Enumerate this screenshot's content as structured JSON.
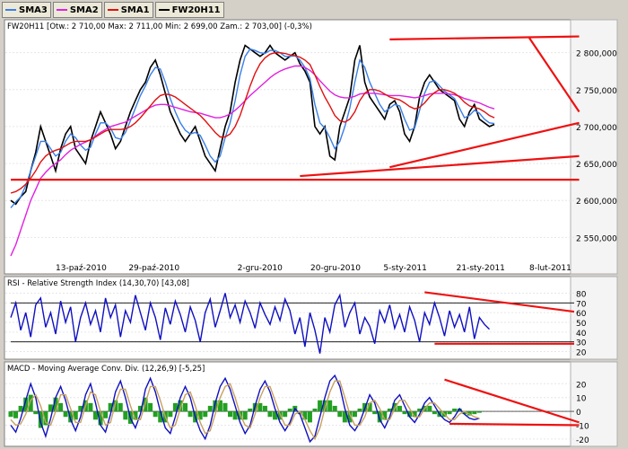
{
  "legend": [
    {
      "label": "SMA3",
      "color": "#3a7fe6"
    },
    {
      "label": "SMA2",
      "color": "#e020e0"
    },
    {
      "label": "SMA1",
      "color": "#e01010"
    },
    {
      "label": "FW20H11",
      "color": "#000000"
    }
  ],
  "chart_data": [
    {
      "type": "line",
      "title": "FW20H11 [Otw.: 2 710,00  Max: 2 711,00  Min: 2 699,00  Zam.: 2 703,00] (-0,3%)",
      "x_ticks": [
        "13-paź-2010",
        "29-paź-2010",
        "2-gru-2010",
        "20-gru-2010",
        "5-sty-2011",
        "21-sty-2011",
        "8-lut-2011"
      ],
      "y_ticks": [
        "2 550,000",
        "2 600,000",
        "2 650,000",
        "2 700,000",
        "2 750,000",
        "2 800,000"
      ],
      "ylim": [
        2520,
        2830
      ],
      "series": [
        {
          "name": "FW20H11",
          "color": "#000000",
          "values": [
            2600,
            2595,
            2605,
            2612,
            2640,
            2665,
            2700,
            2680,
            2660,
            2640,
            2670,
            2690,
            2700,
            2670,
            2660,
            2650,
            2680,
            2700,
            2720,
            2705,
            2690,
            2670,
            2680,
            2700,
            2720,
            2735,
            2750,
            2760,
            2780,
            2790,
            2770,
            2745,
            2720,
            2705,
            2690,
            2680,
            2690,
            2700,
            2680,
            2660,
            2650,
            2640,
            2670,
            2700,
            2720,
            2760,
            2790,
            2810,
            2805,
            2800,
            2795,
            2800,
            2810,
            2800,
            2795,
            2790,
            2795,
            2800,
            2785,
            2775,
            2760,
            2700,
            2690,
            2700,
            2660,
            2655,
            2700,
            2720,
            2740,
            2790,
            2810,
            2760,
            2740,
            2730,
            2720,
            2710,
            2730,
            2735,
            2720,
            2690,
            2680,
            2700,
            2740,
            2760,
            2770,
            2760,
            2750,
            2745,
            2740,
            2735,
            2710,
            2700,
            2720,
            2730,
            2710,
            2705,
            2700,
            2703
          ]
        },
        {
          "name": "SMA3",
          "color": "#3a7fe6",
          "values": [
            2590,
            2598,
            2605,
            2620,
            2640,
            2660,
            2680,
            2680,
            2670,
            2660,
            2665,
            2680,
            2690,
            2685,
            2675,
            2668,
            2672,
            2690,
            2705,
            2705,
            2698,
            2685,
            2683,
            2692,
            2708,
            2725,
            2742,
            2755,
            2770,
            2780,
            2778,
            2760,
            2738,
            2720,
            2705,
            2695,
            2690,
            2692,
            2688,
            2675,
            2660,
            2652,
            2660,
            2685,
            2705,
            2735,
            2770,
            2795,
            2805,
            2803,
            2800,
            2799,
            2803,
            2803,
            2800,
            2795,
            2795,
            2796,
            2790,
            2780,
            2765,
            2730,
            2705,
            2698,
            2685,
            2670,
            2680,
            2700,
            2725,
            2760,
            2790,
            2780,
            2760,
            2745,
            2730,
            2720,
            2725,
            2730,
            2728,
            2710,
            2695,
            2698,
            2722,
            2745,
            2760,
            2762,
            2755,
            2748,
            2743,
            2738,
            2725,
            2712,
            2715,
            2722,
            2718,
            2710,
            2705,
            2704
          ]
        },
        {
          "name": "SMA2",
          "color": "#e020e0",
          "values": [
            2525,
            2540,
            2560,
            2580,
            2600,
            2615,
            2630,
            2638,
            2645,
            2650,
            2655,
            2662,
            2668,
            2672,
            2676,
            2679,
            2682,
            2687,
            2692,
            2696,
            2700,
            2702,
            2704,
            2706,
            2710,
            2714,
            2718,
            2722,
            2726,
            2729,
            2730,
            2730,
            2728,
            2726,
            2724,
            2722,
            2720,
            2719,
            2718,
            2716,
            2714,
            2712,
            2712,
            2714,
            2717,
            2722,
            2728,
            2735,
            2742,
            2748,
            2754,
            2760,
            2766,
            2771,
            2775,
            2778,
            2780,
            2782,
            2782,
            2780,
            2776,
            2770,
            2762,
            2755,
            2748,
            2743,
            2740,
            2739,
            2739,
            2741,
            2744,
            2745,
            2745,
            2745,
            2744,
            2743,
            2742,
            2742,
            2742,
            2741,
            2740,
            2739,
            2740,
            2742,
            2744,
            2745,
            2745,
            2745,
            2744,
            2743,
            2741,
            2738,
            2736,
            2734,
            2732,
            2729,
            2726,
            2724
          ]
        },
        {
          "name": "SMA1",
          "color": "#e01010",
          "values": [
            2610,
            2612,
            2616,
            2622,
            2630,
            2640,
            2652,
            2660,
            2665,
            2668,
            2670,
            2674,
            2678,
            2680,
            2680,
            2680,
            2682,
            2686,
            2690,
            2694,
            2696,
            2696,
            2696,
            2697,
            2700,
            2705,
            2712,
            2720,
            2728,
            2736,
            2742,
            2744,
            2743,
            2740,
            2735,
            2730,
            2725,
            2720,
            2715,
            2708,
            2700,
            2692,
            2686,
            2686,
            2690,
            2700,
            2715,
            2735,
            2755,
            2772,
            2785,
            2793,
            2798,
            2800,
            2800,
            2799,
            2797,
            2796,
            2794,
            2790,
            2784,
            2770,
            2754,
            2740,
            2728,
            2715,
            2708,
            2706,
            2710,
            2720,
            2735,
            2745,
            2750,
            2750,
            2748,
            2744,
            2740,
            2738,
            2736,
            2732,
            2727,
            2724,
            2726,
            2732,
            2740,
            2746,
            2750,
            2750,
            2748,
            2745,
            2740,
            2733,
            2728,
            2726,
            2724,
            2720,
            2715,
            2712
          ]
        }
      ],
      "trendlines": [
        [
          0,
          2628,
          114,
          2628
        ],
        [
          58,
          2633,
          114,
          2660
        ],
        [
          76,
          2645,
          114,
          2705
        ],
        [
          76,
          2818,
          114,
          2822
        ],
        [
          104,
          2820,
          114,
          2720
        ]
      ]
    },
    {
      "type": "line",
      "title": "RSI - Relative Strength Index (14,30,70) [43,08]",
      "y_ticks": [
        "20",
        "30",
        "40",
        "50",
        "60",
        "70",
        "80"
      ],
      "ylim": [
        14,
        86
      ],
      "levels": [
        30,
        70
      ],
      "series": [
        {
          "name": "RSI",
          "color": "#1010c0",
          "values": [
            55,
            70,
            42,
            60,
            35,
            68,
            75,
            45,
            60,
            38,
            72,
            50,
            66,
            30,
            55,
            70,
            48,
            62,
            40,
            75,
            55,
            68,
            35,
            62,
            50,
            78,
            60,
            42,
            70,
            55,
            32,
            65,
            48,
            72,
            58,
            40,
            66,
            52,
            30,
            60,
            74,
            45,
            62,
            80,
            55,
            68,
            50,
            72,
            60,
            44,
            70,
            58,
            48,
            66,
            52,
            74,
            62,
            38,
            55,
            25,
            60,
            42,
            18,
            55,
            40,
            68,
            78,
            45,
            60,
            70,
            38,
            55,
            46,
            28,
            62,
            50,
            68,
            44,
            58,
            40,
            66,
            52,
            30,
            60,
            48,
            70,
            55,
            36,
            62,
            45,
            58,
            40,
            66,
            33,
            55,
            48,
            43
          ]
        }
      ],
      "trendlines": [
        [
          83,
          81,
          113,
          61
        ],
        [
          85,
          28,
          113,
          28
        ]
      ]
    },
    {
      "type": "line",
      "title": "MACD - Moving Average Conv. Div. (12,26,9) [-5,25]",
      "y_ticks": [
        "20",
        "10",
        "0",
        "-10",
        "-20"
      ],
      "ylim": [
        -24,
        28
      ],
      "series": [
        {
          "name": "MACD",
          "color": "#1010c0",
          "values": [
            -10,
            -15,
            -5,
            8,
            20,
            10,
            -8,
            -18,
            -5,
            10,
            18,
            8,
            -6,
            -14,
            -4,
            12,
            20,
            6,
            -10,
            -15,
            -2,
            14,
            22,
            10,
            -5,
            -12,
            -2,
            16,
            24,
            14,
            0,
            -12,
            -16,
            -4,
            10,
            18,
            10,
            -4,
            -14,
            -20,
            -10,
            6,
            18,
            24,
            16,
            4,
            -8,
            -16,
            -10,
            4,
            16,
            22,
            14,
            2,
            -8,
            -14,
            -8,
            2,
            -2,
            -12,
            -22,
            -18,
            -4,
            10,
            22,
            26,
            18,
            2,
            -10,
            -14,
            -8,
            2,
            12,
            6,
            -6,
            -12,
            -4,
            8,
            12,
            4,
            -4,
            -8,
            -2,
            6,
            10,
            4,
            -2,
            -6,
            -8,
            -4,
            2,
            -2,
            -5,
            -6,
            -5
          ]
        },
        {
          "name": "Signal",
          "color": "#c8a060",
          "values": [
            -6,
            -10,
            -9,
            -2,
            8,
            12,
            4,
            -8,
            -10,
            0,
            12,
            12,
            2,
            -8,
            -8,
            4,
            14,
            12,
            0,
            -10,
            -8,
            6,
            16,
            16,
            4,
            -6,
            -6,
            6,
            18,
            18,
            8,
            -4,
            -12,
            -10,
            2,
            12,
            14,
            4,
            -8,
            -16,
            -14,
            -2,
            10,
            18,
            20,
            10,
            -2,
            -10,
            -12,
            -2,
            10,
            18,
            18,
            8,
            -2,
            -10,
            -10,
            -2,
            0,
            -6,
            -14,
            -20,
            -12,
            2,
            14,
            22,
            22,
            10,
            -2,
            -10,
            -10,
            -4,
            6,
            8,
            2,
            -6,
            -6,
            2,
            8,
            8,
            2,
            -4,
            -4,
            2,
            6,
            6,
            2,
            -2,
            -6,
            -6,
            -2,
            0,
            -2,
            -4,
            -5
          ]
        }
      ],
      "histogram": [
        -4,
        -5,
        4,
        10,
        12,
        -2,
        -12,
        -10,
        5,
        10,
        6,
        -4,
        -8,
        -6,
        4,
        8,
        6,
        -6,
        -10,
        -5,
        6,
        8,
        6,
        -6,
        -9,
        -6,
        4,
        10,
        6,
        -4,
        -8,
        -8,
        -4,
        6,
        8,
        6,
        -4,
        -8,
        -6,
        -4,
        4,
        8,
        8,
        6,
        -4,
        -6,
        -6,
        -6,
        2,
        6,
        6,
        4,
        -4,
        -6,
        -6,
        -4,
        2,
        4,
        -2,
        -6,
        -8,
        2,
        8,
        8,
        8,
        4,
        -4,
        -8,
        -8,
        -4,
        2,
        6,
        6,
        -2,
        -8,
        -6,
        2,
        6,
        4,
        -2,
        -4,
        -4,
        2,
        4,
        4,
        -2,
        -4,
        -4,
        -2,
        2,
        2,
        -2,
        -3,
        -2,
        -1
      ],
      "trendlines": [
        [
          87,
          23,
          114,
          -8
        ],
        [
          88,
          -9,
          114,
          -10
        ]
      ]
    }
  ]
}
